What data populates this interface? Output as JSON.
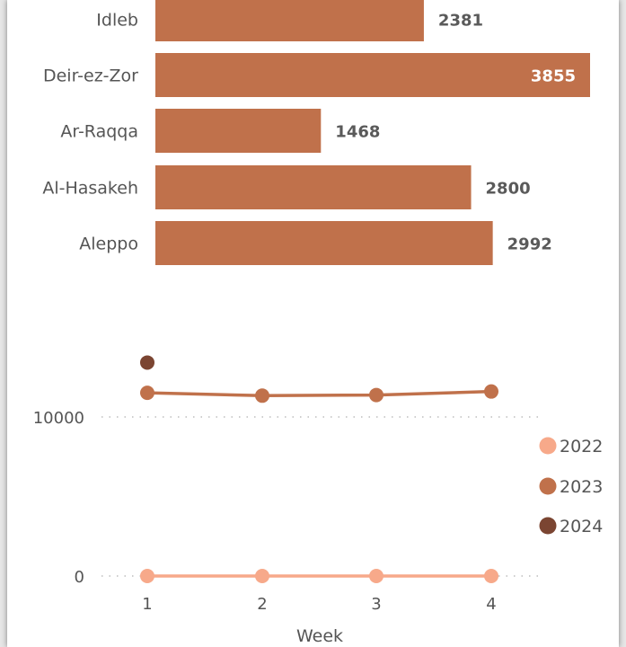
{
  "chart_data": [
    {
      "type": "bar",
      "orientation": "horizontal",
      "categories": [
        "Idleb",
        "Deir-ez-Zor",
        "Ar-Raqqa",
        "Al-Hasakeh",
        "Aleppo"
      ],
      "values": [
        2381,
        3855,
        1468,
        2800,
        2992
      ],
      "color": "#c0714b",
      "xlim": [
        0,
        3855
      ],
      "title": "",
      "xlabel": "",
      "ylabel": ""
    },
    {
      "type": "line",
      "x": [
        1,
        2,
        3,
        4
      ],
      "xlabel": "Week",
      "ylabel": "",
      "ylim": [
        0,
        14500
      ],
      "yticks": [
        0,
        10000
      ],
      "xticks": [
        "1",
        "2",
        "3",
        "4"
      ],
      "grid": "dotted horizontal",
      "legend_position": "right",
      "series": [
        {
          "name": "2022",
          "color": "#f7a98a",
          "values": [
            0,
            0,
            0,
            0
          ]
        },
        {
          "name": "2023",
          "color": "#c0714b",
          "values": [
            11520,
            11340,
            11380,
            11600
          ]
        },
        {
          "name": "2024",
          "color": "#7b4532",
          "values": [
            13420,
            null,
            null,
            null
          ]
        }
      ]
    }
  ]
}
